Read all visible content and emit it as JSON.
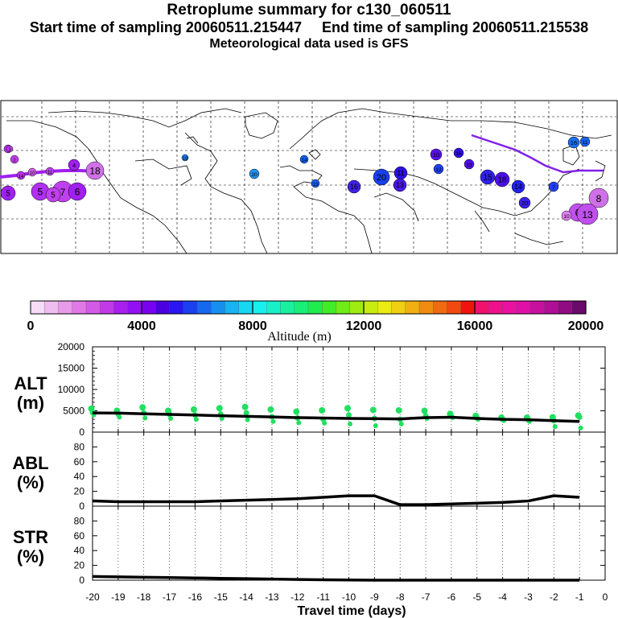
{
  "header": {
    "title": "Retroplume summary for c130_060511",
    "sampling": "Start time of sampling 20060511.215447     End time of sampling 20060511.215538",
    "met": "Meteorological data used is GFS"
  },
  "colorbar": {
    "label": "Altitude (m)",
    "ticks": [
      "0",
      "4000",
      "8000",
      "12000",
      "16000",
      "20000"
    ],
    "colors": [
      "#f6dcf6",
      "#efbdef",
      "#e89be8",
      "#e079e6",
      "#d25ae6",
      "#c23ae8",
      "#a81ff0",
      "#9410f4",
      "#7a00f0",
      "#4a00e0",
      "#2a16f0",
      "#1a40f0",
      "#1668f0",
      "#1690f0",
      "#16b4f0",
      "#16d8f0",
      "#18f0ee",
      "#18f0c8",
      "#18f0a0",
      "#18ee78",
      "#20ec50",
      "#40ec28",
      "#70ec18",
      "#a0ec10",
      "#c8ec10",
      "#ecec10",
      "#f0d010",
      "#f0b010",
      "#f08c10",
      "#f06a10",
      "#f04a10",
      "#f0140e",
      "#f0106e",
      "#f0108c",
      "#ec10a0",
      "#e010a6",
      "#c8109e",
      "#b00e96",
      "#900c82",
      "#6a0a6a"
    ]
  },
  "map": {
    "markers": [
      {
        "lab": "5",
        "c": "#a020f0"
      },
      {
        "lab": "2",
        "c": "#c040ee"
      },
      {
        "lab": "1",
        "c": "#b030f0"
      },
      {
        "lab": "14",
        "c": "#c030f0"
      },
      {
        "lab": "10",
        "c": "#d060e8"
      },
      {
        "lab": "11",
        "c": "#c040ee"
      },
      {
        "lab": "4",
        "c": "#a020f0"
      },
      {
        "lab": "18",
        "c": "#d070e8"
      },
      {
        "lab": "5",
        "c": "#b030f0"
      },
      {
        "lab": "7",
        "c": "#c040ee"
      },
      {
        "lab": "6",
        "c": "#a020f0"
      },
      {
        "lab": "5",
        "c": "#c040ee"
      },
      {
        "lab": "19",
        "c": "#2080f0"
      },
      {
        "lab": "20",
        "c": "#2090f0"
      },
      {
        "lab": "14",
        "c": "#1060f0"
      },
      {
        "lab": "13",
        "c": "#1860f0"
      },
      {
        "lab": "20",
        "c": "#1840f0"
      },
      {
        "lab": "16",
        "c": "#4020e8"
      },
      {
        "lab": "11",
        "c": "#2a10e8"
      },
      {
        "lab": "13",
        "c": "#4a18e8"
      },
      {
        "lab": "10",
        "c": "#5a10e8"
      },
      {
        "lab": "12",
        "c": "#2040f0"
      },
      {
        "lab": "16",
        "c": "#3010e8"
      },
      {
        "lab": "13",
        "c": "#5010e8"
      },
      {
        "lab": "15",
        "c": "#3020e8"
      },
      {
        "lab": "18",
        "c": "#4a10e8"
      },
      {
        "lab": "14",
        "c": "#2020f0"
      },
      {
        "lab": "20",
        "c": "#3a20e8"
      },
      {
        "lab": "7",
        "c": "#2040f0"
      },
      {
        "lab": "16",
        "c": "#1a70f0"
      },
      {
        "lab": "11",
        "c": "#1a60f0"
      },
      {
        "lab": "8",
        "c": "#d070e8"
      },
      {
        "lab": "6",
        "c": "#c050ee"
      },
      {
        "lab": "13",
        "c": "#c050ee"
      },
      {
        "lab": "10",
        "c": "#e080f0"
      },
      {
        "lab": "3",
        "c": "#c040ee"
      }
    ]
  },
  "chart_data": [
    {
      "type": "scatter+line",
      "panel": "ALT",
      "ylabel": "ALT\n(m)",
      "ylim": [
        0,
        20000
      ],
      "yticks": [
        0,
        5000,
        10000,
        15000,
        20000
      ],
      "xlim": [
        -20,
        0
      ],
      "line": {
        "x": [
          -20,
          -19,
          -18,
          -17,
          -16,
          -15,
          -14,
          -13,
          -12,
          -11,
          -10,
          -9,
          -8,
          -7,
          -6,
          -5,
          -4,
          -3,
          -2,
          -1
        ],
        "y": [
          4500,
          4450,
          4300,
          4150,
          4000,
          3850,
          3700,
          3550,
          3400,
          3300,
          3200,
          3150,
          3100,
          3400,
          3500,
          3200,
          3000,
          2900,
          2700,
          2500
        ]
      },
      "points": [
        {
          "x": -20,
          "y": [
            5500,
            4600,
            4000
          ]
        },
        {
          "x": -19,
          "y": [
            5000,
            4200,
            3500
          ]
        },
        {
          "x": -18,
          "y": [
            5800,
            4500,
            3300
          ]
        },
        {
          "x": -17,
          "y": [
            5000,
            4200,
            3200
          ]
        },
        {
          "x": -16,
          "y": [
            5300,
            4000,
            3000
          ]
        },
        {
          "x": -15,
          "y": [
            5600,
            4200,
            3200
          ]
        },
        {
          "x": -14,
          "y": [
            5900,
            4500,
            2900
          ]
        },
        {
          "x": -13,
          "y": [
            5300,
            3600,
            2500
          ]
        },
        {
          "x": -12,
          "y": [
            4800,
            3300,
            2200
          ]
        },
        {
          "x": -11,
          "y": [
            5100,
            3000,
            2100
          ]
        },
        {
          "x": -10,
          "y": [
            5600,
            4000,
            1900
          ]
        },
        {
          "x": -9,
          "y": [
            5200,
            3200,
            1500
          ]
        },
        {
          "x": -8,
          "y": [
            5100,
            3000,
            1900
          ]
        },
        {
          "x": -7,
          "y": [
            5000,
            3800,
            3200
          ]
        },
        {
          "x": -6,
          "y": [
            4300,
            3700,
            3400
          ]
        },
        {
          "x": -5,
          "y": [
            3800,
            3300,
            3000
          ]
        },
        {
          "x": -4,
          "y": [
            3400,
            3000,
            2700
          ]
        },
        {
          "x": -3,
          "y": [
            3400,
            2900,
            2500
          ]
        },
        {
          "x": -2,
          "y": [
            3500,
            2700,
            1300
          ]
        },
        {
          "x": -1,
          "y": [
            3900,
            3500,
            1000
          ]
        }
      ],
      "point_color": "#20e060"
    },
    {
      "type": "line",
      "panel": "ABL",
      "ylabel": "ABL\n(%)",
      "ylim": [
        0,
        100
      ],
      "yticks": [
        0,
        20,
        40,
        60,
        80
      ],
      "xlim": [
        -20,
        0
      ],
      "x": [
        -20,
        -19,
        -18,
        -17,
        -16,
        -15,
        -14,
        -13,
        -12,
        -11,
        -10,
        -9,
        -8,
        -7,
        -6,
        -5,
        -4,
        -3,
        -2,
        -1
      ],
      "y": [
        7,
        6,
        6,
        6,
        6,
        7,
        8,
        9,
        10,
        12,
        14,
        14,
        2,
        2,
        3,
        4,
        5,
        7,
        14,
        12
      ]
    },
    {
      "type": "line",
      "panel": "STR",
      "ylabel": "STR\n(%)",
      "ylim": [
        0,
        100
      ],
      "yticks": [
        0,
        20,
        40,
        60,
        80
      ],
      "xlim": [
        -20,
        0
      ],
      "x": [
        -20,
        -19,
        -18,
        -17,
        -16,
        -15,
        -14,
        -13,
        -12,
        -11,
        -10,
        -9,
        -8,
        -7,
        -6,
        -5,
        -4,
        -3,
        -2,
        -1
      ],
      "y": [
        5,
        4.5,
        4,
        3.5,
        3,
        2.5,
        2,
        1.5,
        1,
        0.5,
        0.3,
        0,
        0,
        0,
        0,
        0,
        0,
        0,
        0,
        0
      ],
      "xticks": [
        "-20",
        "-19",
        "-18",
        "-17",
        "-16",
        "-15",
        "-14",
        "-13",
        "-12",
        "-11",
        "-10",
        "-9",
        "-8",
        "-7",
        "-6",
        "-5",
        "-4",
        "-3",
        "-2",
        "-1",
        "0"
      ],
      "xlabel": "Travel time (days)"
    }
  ]
}
